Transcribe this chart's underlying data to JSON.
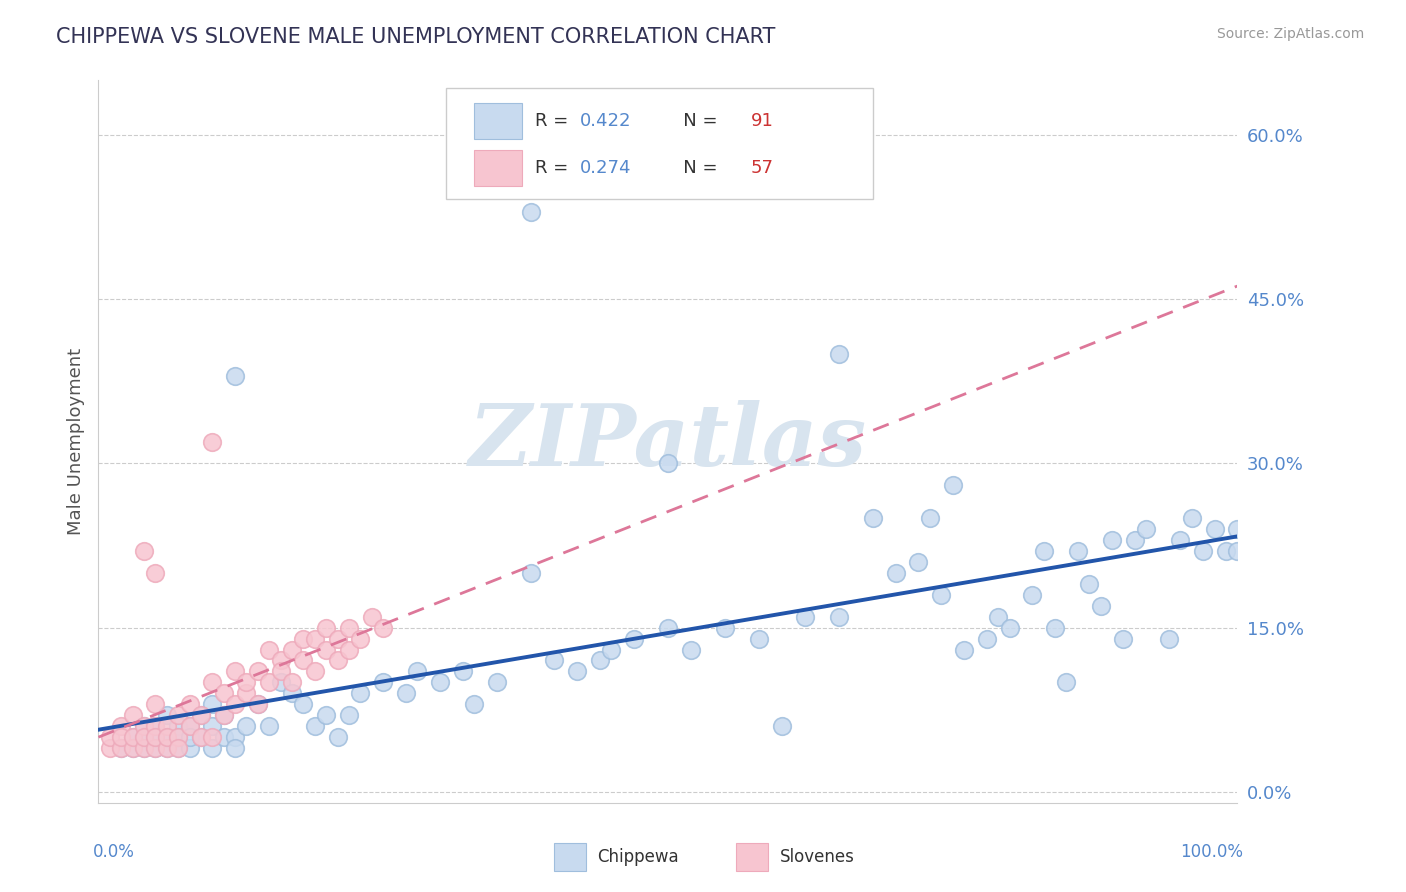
{
  "title": "CHIPPEWA VS SLOVENE MALE UNEMPLOYMENT CORRELATION CHART",
  "source": "Source: ZipAtlas.com",
  "ylabel": "Male Unemployment",
  "ytick_labels": [
    "0.0%",
    "15.0%",
    "30.0%",
    "45.0%",
    "60.0%"
  ],
  "ytick_values": [
    0.0,
    0.15,
    0.3,
    0.45,
    0.6
  ],
  "xlim": [
    0.0,
    1.0
  ],
  "ylim": [
    -0.01,
    0.65
  ],
  "chippewa_R": 0.422,
  "chippewa_N": 91,
  "slovene_R": 0.274,
  "slovene_N": 57,
  "chippewa_face_color": "#c8daef",
  "chippewa_edge_color": "#a0bedd",
  "slovene_face_color": "#f7c5d0",
  "slovene_edge_color": "#eeaabb",
  "chippewa_line_color": "#2255aa",
  "slovene_line_color": "#dd7799",
  "legend_label_chippewa": "Chippewa",
  "legend_label_slovene": "Slovenes",
  "background_color": "#ffffff",
  "grid_color": "#cccccc",
  "watermark": "ZIPatlas",
  "watermark_color": "#d8e4ef",
  "title_color": "#333355",
  "axis_label_color": "#5588cc",
  "R_N_color_blue": "#5588cc",
  "R_N_color_red": "#cc3333",
  "chippewa_x": [
    0.02,
    0.03,
    0.03,
    0.04,
    0.04,
    0.04,
    0.05,
    0.05,
    0.05,
    0.06,
    0.06,
    0.06,
    0.07,
    0.07,
    0.07,
    0.08,
    0.08,
    0.08,
    0.09,
    0.09,
    0.1,
    0.1,
    0.1,
    0.11,
    0.11,
    0.12,
    0.12,
    0.13,
    0.14,
    0.15,
    0.16,
    0.17,
    0.18,
    0.19,
    0.2,
    0.21,
    0.22,
    0.23,
    0.25,
    0.27,
    0.28,
    0.3,
    0.32,
    0.33,
    0.35,
    0.38,
    0.4,
    0.42,
    0.44,
    0.45,
    0.47,
    0.5,
    0.52,
    0.55,
    0.58,
    0.6,
    0.62,
    0.65,
    0.68,
    0.7,
    0.72,
    0.73,
    0.74,
    0.75,
    0.76,
    0.78,
    0.79,
    0.8,
    0.82,
    0.83,
    0.84,
    0.85,
    0.86,
    0.87,
    0.88,
    0.89,
    0.9,
    0.91,
    0.92,
    0.94,
    0.95,
    0.96,
    0.97,
    0.98,
    0.99,
    1.0,
    1.0,
    0.65,
    0.38,
    0.5,
    0.12
  ],
  "chippewa_y": [
    0.04,
    0.05,
    0.04,
    0.04,
    0.06,
    0.05,
    0.04,
    0.06,
    0.05,
    0.04,
    0.05,
    0.07,
    0.04,
    0.06,
    0.05,
    0.04,
    0.06,
    0.05,
    0.05,
    0.07,
    0.04,
    0.06,
    0.08,
    0.05,
    0.07,
    0.05,
    0.04,
    0.06,
    0.08,
    0.06,
    0.1,
    0.09,
    0.08,
    0.06,
    0.07,
    0.05,
    0.07,
    0.09,
    0.1,
    0.09,
    0.11,
    0.1,
    0.11,
    0.08,
    0.1,
    0.2,
    0.12,
    0.11,
    0.12,
    0.13,
    0.14,
    0.15,
    0.13,
    0.15,
    0.14,
    0.06,
    0.16,
    0.16,
    0.25,
    0.2,
    0.21,
    0.25,
    0.18,
    0.28,
    0.13,
    0.14,
    0.16,
    0.15,
    0.18,
    0.22,
    0.15,
    0.1,
    0.22,
    0.19,
    0.17,
    0.23,
    0.14,
    0.23,
    0.24,
    0.14,
    0.23,
    0.25,
    0.22,
    0.24,
    0.22,
    0.24,
    0.22,
    0.4,
    0.53,
    0.3,
    0.38
  ],
  "slovene_x": [
    0.01,
    0.01,
    0.02,
    0.02,
    0.02,
    0.03,
    0.03,
    0.03,
    0.04,
    0.04,
    0.04,
    0.05,
    0.05,
    0.05,
    0.05,
    0.06,
    0.06,
    0.06,
    0.07,
    0.07,
    0.07,
    0.08,
    0.08,
    0.09,
    0.09,
    0.1,
    0.1,
    0.11,
    0.11,
    0.12,
    0.12,
    0.13,
    0.13,
    0.14,
    0.14,
    0.15,
    0.15,
    0.16,
    0.16,
    0.17,
    0.17,
    0.18,
    0.18,
    0.19,
    0.19,
    0.2,
    0.2,
    0.21,
    0.21,
    0.22,
    0.22,
    0.23,
    0.24,
    0.25,
    0.04,
    0.05,
    0.1
  ],
  "slovene_y": [
    0.04,
    0.05,
    0.04,
    0.06,
    0.05,
    0.04,
    0.05,
    0.07,
    0.04,
    0.06,
    0.05,
    0.04,
    0.06,
    0.08,
    0.05,
    0.04,
    0.06,
    0.05,
    0.05,
    0.07,
    0.04,
    0.06,
    0.08,
    0.05,
    0.07,
    0.05,
    0.1,
    0.07,
    0.09,
    0.08,
    0.11,
    0.09,
    0.1,
    0.08,
    0.11,
    0.1,
    0.13,
    0.12,
    0.11,
    0.1,
    0.13,
    0.12,
    0.14,
    0.11,
    0.14,
    0.13,
    0.15,
    0.12,
    0.14,
    0.13,
    0.15,
    0.14,
    0.16,
    0.15,
    0.22,
    0.2,
    0.32
  ]
}
